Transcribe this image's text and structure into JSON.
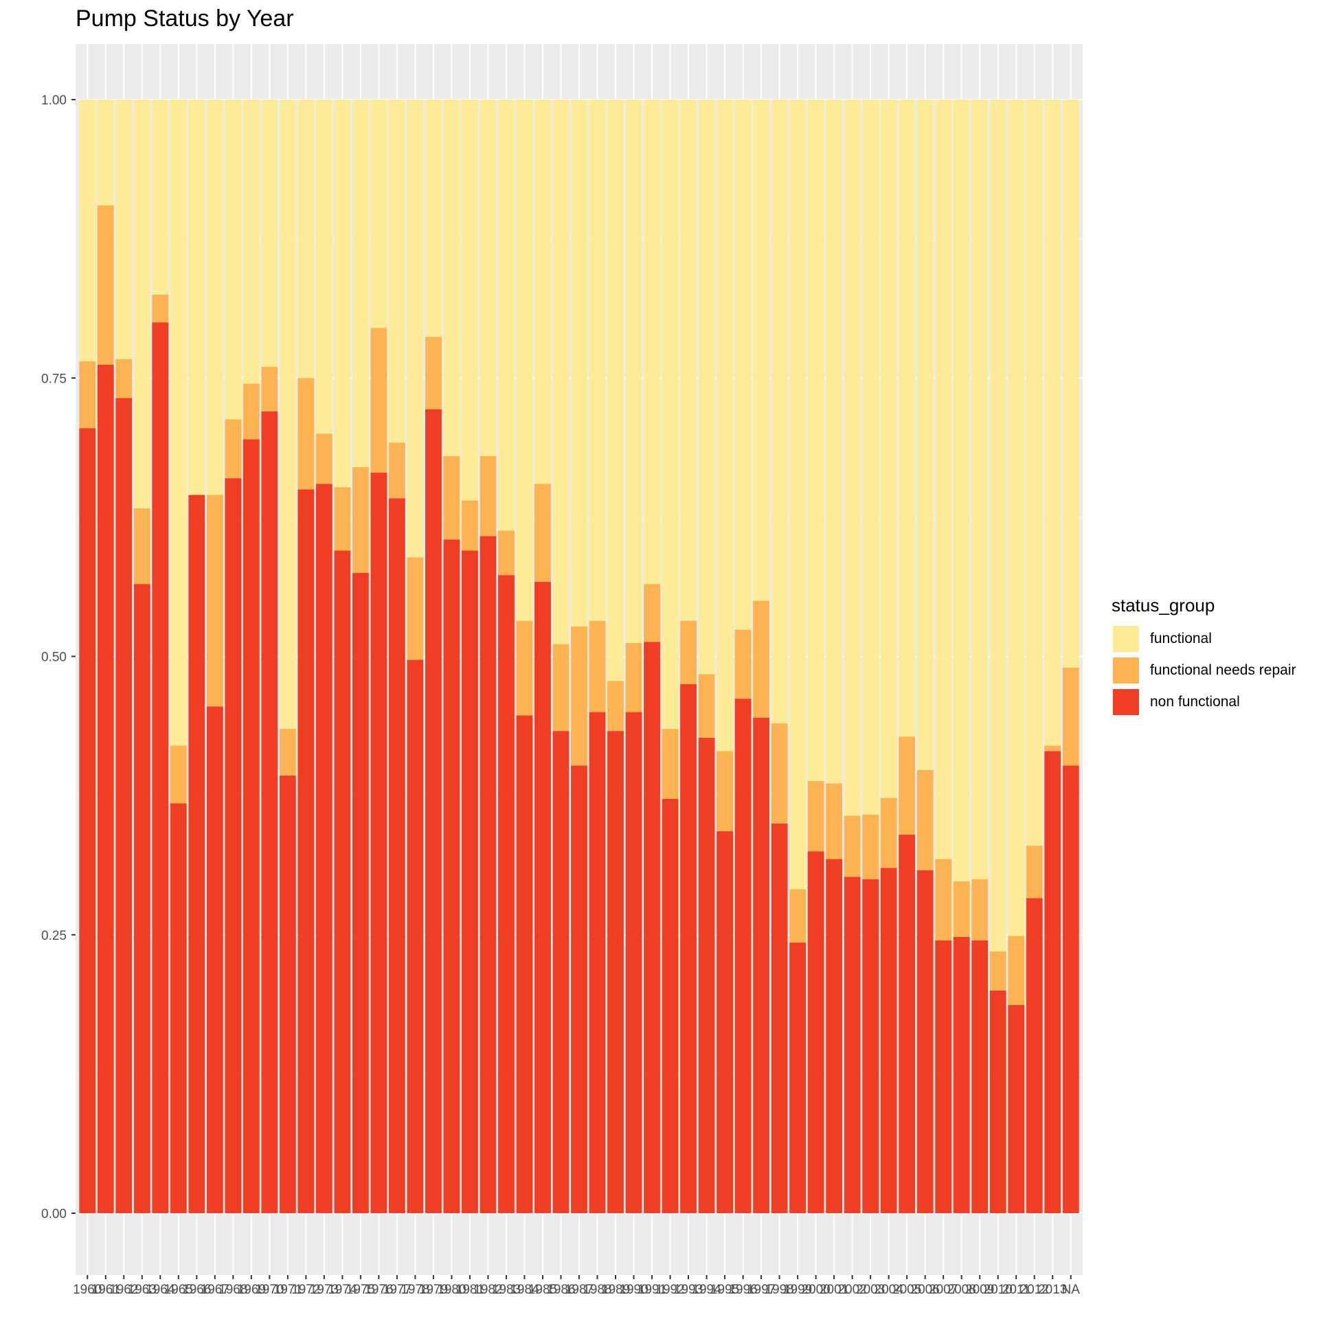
{
  "chart_data": {
    "type": "bar",
    "stacked": true,
    "title": "Pump Status by Year",
    "xlabel": "",
    "ylabel": "",
    "ylim": [
      0,
      1
    ],
    "yticks": [
      "0.00",
      "0.25",
      "0.50",
      "0.75",
      "1.00"
    ],
    "legend": {
      "title": "status_group",
      "position": "right"
    },
    "grid": true,
    "categories": [
      "1960",
      "1961",
      "1962",
      "1963",
      "1964",
      "1965",
      "1966",
      "1967",
      "1968",
      "1969",
      "1970",
      "1971",
      "1972",
      "1973",
      "1974",
      "1975",
      "1976",
      "1977",
      "1978",
      "1979",
      "1980",
      "1981",
      "1982",
      "1983",
      "1984",
      "1985",
      "1986",
      "1987",
      "1988",
      "1989",
      "1990",
      "1991",
      "1992",
      "1993",
      "1994",
      "1995",
      "1996",
      "1997",
      "1998",
      "1999",
      "2000",
      "2001",
      "2002",
      "2003",
      "2004",
      "2005",
      "2006",
      "2007",
      "2008",
      "2009",
      "2010",
      "2011",
      "2012",
      "2013",
      "NA"
    ],
    "series": [
      {
        "name": "non functional",
        "color": "#ef3e23",
        "values": [
          0.705,
          0.762,
          0.732,
          0.565,
          0.8,
          0.368,
          0.645,
          0.455,
          0.66,
          0.695,
          0.72,
          0.393,
          0.65,
          0.655,
          0.595,
          0.575,
          0.665,
          0.642,
          0.497,
          0.722,
          0.605,
          0.595,
          0.608,
          0.573,
          0.447,
          0.567,
          0.433,
          0.402,
          0.45,
          0.433,
          0.45,
          0.513,
          0.372,
          0.475,
          0.427,
          0.343,
          0.462,
          0.445,
          0.35,
          0.243,
          0.325,
          0.318,
          0.302,
          0.3,
          0.31,
          0.34,
          0.308,
          0.245,
          0.248,
          0.245,
          0.2,
          0.187,
          0.283,
          0.415,
          0.402
        ]
      },
      {
        "name": "functional needs repair",
        "color": "#fdb351",
        "values": [
          0.06,
          0.143,
          0.035,
          0.068,
          0.025,
          0.052,
          0.0,
          0.19,
          0.053,
          0.05,
          0.04,
          0.042,
          0.1,
          0.045,
          0.057,
          0.095,
          0.13,
          0.05,
          0.092,
          0.065,
          0.075,
          0.045,
          0.072,
          0.04,
          0.085,
          0.088,
          0.078,
          0.125,
          0.082,
          0.045,
          0.062,
          0.052,
          0.063,
          0.057,
          0.057,
          0.072,
          0.062,
          0.105,
          0.09,
          0.048,
          0.063,
          0.068,
          0.055,
          0.058,
          0.063,
          0.088,
          0.09,
          0.073,
          0.05,
          0.055,
          0.035,
          0.062,
          0.047,
          0.005,
          0.088
        ]
      },
      {
        "name": "functional",
        "color": "#feeb98",
        "values": [
          0.235,
          0.095,
          0.233,
          0.367,
          0.175,
          0.58,
          0.355,
          0.355,
          0.287,
          0.255,
          0.24,
          0.565,
          0.25,
          0.3,
          0.348,
          0.33,
          0.205,
          0.308,
          0.411,
          0.213,
          0.32,
          0.36,
          0.32,
          0.387,
          0.468,
          0.345,
          0.489,
          0.473,
          0.468,
          0.522,
          0.488,
          0.435,
          0.565,
          0.468,
          0.516,
          0.585,
          0.476,
          0.45,
          0.56,
          0.709,
          0.612,
          0.614,
          0.643,
          0.642,
          0.627,
          0.572,
          0.602,
          0.682,
          0.702,
          0.7,
          0.765,
          0.751,
          0.67,
          0.58,
          0.51
        ]
      }
    ]
  }
}
